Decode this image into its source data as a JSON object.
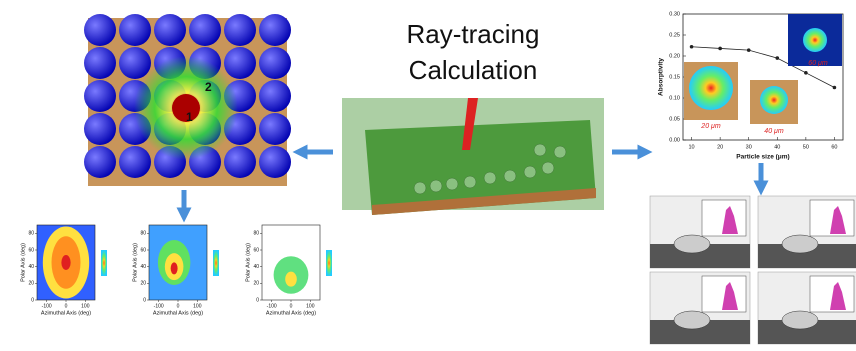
{
  "title": [
    "Ray-tracing",
    "Calculation"
  ],
  "sphere_labels": [
    "2",
    "1"
  ],
  "chart_data": {
    "type": "line",
    "x": [
      10,
      20,
      30,
      40,
      50,
      60
    ],
    "series": [
      {
        "color": "#222222",
        "values": [
          0.222,
          0.218,
          0.214,
          0.195,
          0.16,
          0.125
        ]
      }
    ],
    "xlim": [
      7,
      63
    ],
    "xticks": [
      10,
      20,
      30,
      40,
      50,
      60
    ],
    "ylim": [
      0,
      0.3
    ],
    "yticks": [
      {
        "value": 0,
        "label": "0.00"
      },
      {
        "value": 0.05,
        "label": "0.05"
      },
      {
        "value": 0.1,
        "label": "0.10"
      },
      {
        "value": 0.15,
        "label": "0.15"
      },
      {
        "value": 0.2,
        "label": "0.20"
      },
      {
        "value": 0.25,
        "label": "0.25"
      },
      {
        "value": 0.3,
        "label": "0.30"
      }
    ],
    "xlabel": "Particle size (μm)",
    "ylabel": "Absorptivity",
    "annotations": [
      "20 μm",
      "40 μm",
      "60 μm"
    ]
  },
  "polar_plots": {
    "xlabel": "Azimuthal Axis (deg)",
    "ylabel": "Polar Axis (deg)",
    "xlim": [
      -150,
      150
    ],
    "xticks": [
      -100,
      0,
      100
    ],
    "ylim": [
      0,
      90
    ],
    "yticks": [
      0,
      20,
      40,
      60,
      80
    ]
  }
}
